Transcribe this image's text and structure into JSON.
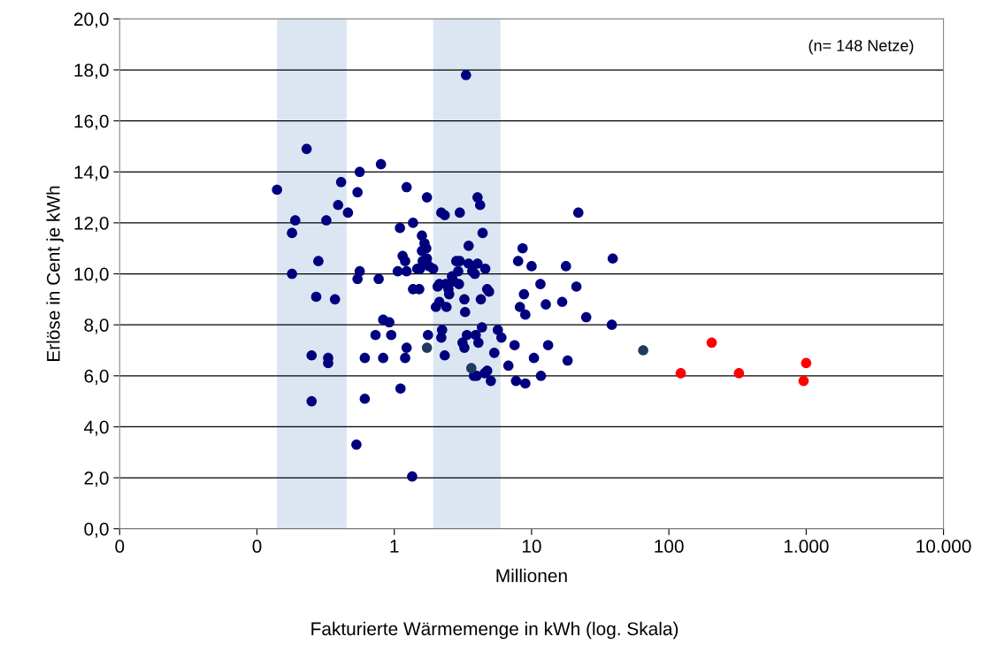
{
  "chart_data": {
    "type": "scatter",
    "xlabel": "Millionen",
    "ylabel": "Erlöse in Cent je kWh",
    "annotations": [
      "(n= 148 Netze)",
      "Fakturierte Wärmemenge in kWh (log. Skala)"
    ],
    "log": "x",
    "grid": "y",
    "marker": "circle",
    "xlim": [
      0.01,
      10000
    ],
    "xticks": [
      {
        "value": 0.01,
        "label": "0"
      },
      {
        "value": 0.1,
        "label": "0"
      },
      {
        "value": 1,
        "label": "1"
      },
      {
        "value": 10,
        "label": "10"
      },
      {
        "value": 100,
        "label": "100"
      },
      {
        "value": 1000,
        "label": "1.000"
      },
      {
        "value": 10000,
        "label": "10.000"
      }
    ],
    "ylim": [
      0,
      20
    ],
    "yticks": [
      {
        "value": 0,
        "label": "0,0"
      },
      {
        "value": 2,
        "label": "2,0"
      },
      {
        "value": 4,
        "label": "4,0"
      },
      {
        "value": 6,
        "label": "6,0"
      },
      {
        "value": 8,
        "label": "8,0"
      },
      {
        "value": 10,
        "label": "10,0"
      },
      {
        "value": 12,
        "label": "12,0"
      },
      {
        "value": 14,
        "label": "14,0"
      },
      {
        "value": 16,
        "label": "16,0"
      },
      {
        "value": 18,
        "label": "18,0"
      },
      {
        "value": 20,
        "label": "20,0"
      }
    ],
    "bands": [
      {
        "axis": "x",
        "from": 0.14,
        "to": 0.45,
        "color": "#dce6f2"
      },
      {
        "axis": "x",
        "from": 1.92,
        "to": 5.94,
        "color": "#dce6f2"
      }
    ],
    "series": [
      {
        "color": "#00007f",
        "x": [
          0.14,
          0.18,
          0.19,
          0.23,
          0.18,
          0.32,
          0.28,
          0.27,
          0.37,
          0.25,
          0.33,
          0.33,
          0.25,
          0.41,
          0.39,
          0.46,
          0.54,
          0.56,
          0.54,
          0.56,
          0.77,
          0.8,
          0.61,
          0.61,
          0.73,
          0.83,
          0.83,
          0.92,
          0.95,
          0.53,
          1.06,
          1.1,
          1.15,
          1.2,
          1.23,
          1.11,
          1.23,
          1.2,
          1.23,
          1.35,
          1.37,
          1.37,
          1.47,
          1.52,
          1.54,
          1.59,
          1.61,
          1.59,
          1.66,
          1.71,
          1.73,
          1.73,
          1.76,
          1.79,
          1.92,
          2.01,
          2.07,
          2.13,
          2.13,
          2.2,
          2.2,
          2.23,
          2.33,
          2.33,
          2.37,
          2.4,
          2.48,
          2.51,
          2.63,
          2.71,
          2.83,
          2.92,
          2.96,
          3.0,
          3.0,
          3.14,
          3.24,
          3.24,
          3.28,
          3.33,
          3.38,
          3.48,
          3.48,
          3.7,
          3.8,
          3.92,
          3.86,
          4.04,
          3.98,
          4.04,
          4.1,
          4.22,
          4.27,
          4.35,
          4.4,
          4.55,
          4.6,
          4.75,
          4.9,
          4.75,
          5.05,
          5.35,
          5.68,
          6.03,
          6.78,
          7.52,
          7.7,
          7.98,
          8.22,
          8.6,
          8.8,
          9.0,
          9.0,
          10,
          10.4,
          11.6,
          11.7,
          13.2,
          12.7,
          16.7,
          17.8,
          18.3,
          21.2,
          21.9,
          25,
          38.4,
          39
        ],
        "values": [
          13.3,
          11.6,
          12.1,
          14.9,
          10.0,
          12.1,
          10.5,
          9.1,
          9.0,
          6.8,
          6.7,
          6.5,
          5.0,
          13.6,
          12.7,
          12.4,
          13.2,
          14.0,
          9.8,
          10.1,
          9.8,
          14.3,
          6.7,
          5.1,
          7.6,
          6.7,
          8.2,
          8.1,
          7.6,
          3.3,
          10.1,
          11.8,
          10.7,
          10.5,
          10.1,
          5.5,
          7.1,
          6.7,
          13.4,
          2.05,
          12.0,
          9.4,
          10.2,
          9.4,
          10.2,
          10.9,
          10.5,
          11.5,
          11.2,
          11.0,
          10.6,
          13.0,
          7.6,
          10.3,
          10.2,
          8.7,
          9.5,
          9.6,
          8.9,
          12.4,
          7.5,
          7.8,
          6.8,
          12.3,
          9.6,
          8.7,
          9.4,
          9.2,
          9.9,
          9.7,
          10.5,
          10.1,
          9.6,
          10.5,
          12.4,
          7.3,
          7.1,
          9.0,
          8.5,
          17.8,
          7.6,
          10.4,
          11.1,
          10.1,
          6.0,
          7.6,
          10.0,
          13.0,
          6.0,
          10.4,
          7.3,
          12.7,
          9.0,
          7.9,
          11.6,
          6.1,
          10.2,
          9.4,
          9.3,
          6.2,
          5.8,
          6.9,
          7.8,
          7.5,
          6.4,
          7.2,
          5.8,
          10.5,
          8.7,
          11.0,
          9.2,
          8.4,
          5.7,
          10.3,
          6.7,
          9.6,
          6.0,
          7.2,
          8.8,
          8.9,
          10.3,
          6.6,
          9.5,
          12.4,
          8.3,
          8.0,
          10.6
        ]
      },
      {
        "color": "#1f3a5f",
        "x": [
          1.73,
          3.64,
          65
        ],
        "values": [
          7.1,
          6.3,
          7.0
        ]
      },
      {
        "color": "#ff0000",
        "x": [
          122,
          205,
          324,
          957,
          1000
        ],
        "values": [
          6.1,
          7.3,
          6.1,
          5.8,
          6.5
        ]
      }
    ]
  }
}
